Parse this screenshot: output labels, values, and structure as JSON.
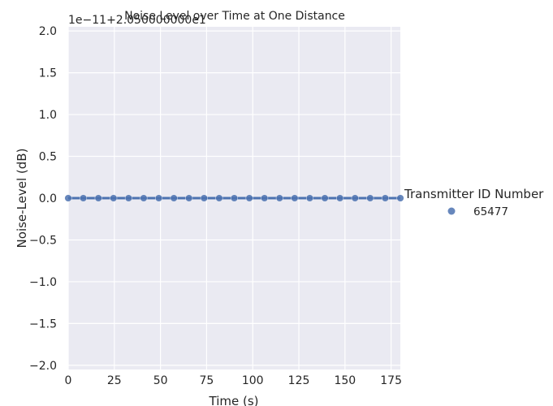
{
  "chart_data": {
    "type": "scatter",
    "title": "Noise Level over Time at One Distance",
    "xlabel": "Time (s)",
    "ylabel": "Noise-Level (dB)",
    "y_offset_text": "1e−11+2.050000000e1",
    "xlim": [
      0,
      180
    ],
    "ylim": [
      -2.05,
      2.05
    ],
    "x_ticks": [
      0,
      25,
      50,
      75,
      100,
      125,
      150,
      175
    ],
    "x_tick_labels": [
      "0",
      "25",
      "50",
      "75",
      "100",
      "125",
      "150",
      "175"
    ],
    "y_ticks": [
      2.0,
      1.5,
      1.0,
      0.5,
      0.0,
      -0.5,
      -1.0,
      -1.5,
      -2.0
    ],
    "y_tick_labels": [
      "2.0",
      "1.5",
      "1.0",
      "0.5",
      "0.0",
      "−0.5",
      "−1.0",
      "−1.5",
      "−2.0"
    ],
    "grid": true,
    "legend": {
      "title": "Transmitter ID Number",
      "placement": "right",
      "entries": [
        "65477"
      ]
    },
    "series": [
      {
        "name": "65477",
        "color": "#4c72b0",
        "fit_line": true,
        "x": [
          0,
          8.18,
          16.36,
          24.55,
          32.73,
          40.91,
          49.09,
          57.27,
          65.45,
          73.64,
          81.82,
          90,
          98.18,
          106.36,
          114.55,
          122.73,
          130.91,
          139.09,
          147.27,
          155.45,
          163.64,
          171.82,
          180
        ],
        "y": [
          0,
          0,
          0,
          0,
          0,
          0,
          0,
          0,
          0,
          0,
          0,
          0,
          0,
          0,
          0,
          0,
          0,
          0,
          0,
          0,
          0,
          0,
          0
        ]
      }
    ]
  }
}
